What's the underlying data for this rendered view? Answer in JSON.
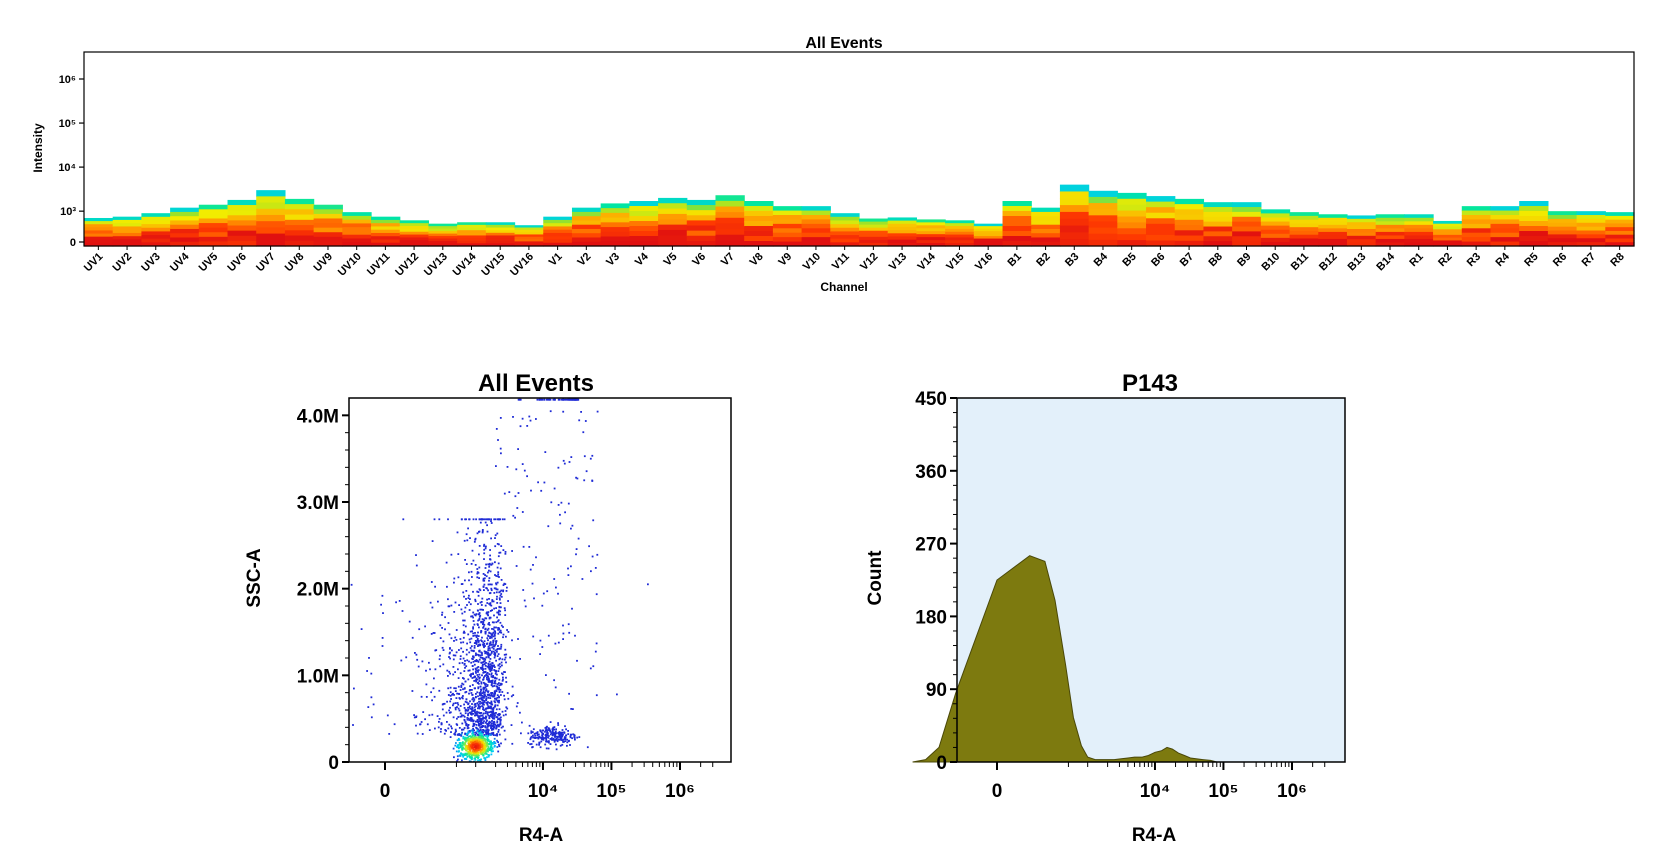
{
  "colors": {
    "background": "#ffffff",
    "axis": "#000000",
    "heat_scale": [
      "#00c8ff",
      "#00e6a0",
      "#9be22a",
      "#f2ec00",
      "#ff9d00",
      "#ff3b00",
      "#e01010"
    ],
    "dot_plot_points": "#1f2bd6",
    "histogram_fill": "#7d7a0f",
    "histogram_plot_bg": "#e3f0fa"
  },
  "chart_data": [
    {
      "type": "heatmap",
      "title": "All Events",
      "xlabel": "Channel",
      "ylabel": "Intensity",
      "y_scale": "log",
      "y_tick_labels": [
        "0",
        "10³",
        "10⁴",
        "10⁵",
        "10⁶"
      ],
      "y_tick_values": [
        0,
        1000,
        10000,
        100000,
        1000000
      ],
      "grid": false,
      "categories": [
        "UV1",
        "UV2",
        "UV3",
        "UV4",
        "UV5",
        "UV6",
        "UV7",
        "UV8",
        "UV9",
        "UV10",
        "UV11",
        "UV12",
        "UV13",
        "UV14",
        "UV15",
        "UV16",
        "V1",
        "V2",
        "V3",
        "V4",
        "V5",
        "V6",
        "V7",
        "V8",
        "V9",
        "V10",
        "V11",
        "V12",
        "V13",
        "V14",
        "V15",
        "V16",
        "B1",
        "B2",
        "B3",
        "B4",
        "B5",
        "B6",
        "B7",
        "B8",
        "B9",
        "B10",
        "B11",
        "B12",
        "B13",
        "B14",
        "R1",
        "R2",
        "R3",
        "R4",
        "R5",
        "R6",
        "R7",
        "R8"
      ],
      "max_intensity": [
        700,
        750,
        900,
        1200,
        1400,
        1800,
        3000,
        1900,
        1400,
        950,
        750,
        620,
        520,
        560,
        560,
        480,
        750,
        1200,
        1500,
        1700,
        2000,
        1800,
        2300,
        1700,
        1300,
        1300,
        900,
        680,
        720,
        650,
        620,
        520,
        1700,
        1200,
        4000,
        2900,
        2600,
        2200,
        1900,
        1600,
        1600,
        1100,
        950,
        850,
        800,
        850,
        850,
        600,
        1300,
        1300,
        1700,
        1000,
        1000,
        950
      ]
    },
    {
      "type": "scatter",
      "title": "All Events",
      "xlabel": "R4-A",
      "ylabel": "SSC-A",
      "x_scale": "biexponential",
      "x_tick_labels": [
        "0",
        "10⁴",
        "10⁵",
        "10⁶"
      ],
      "x_tick_values": [
        0,
        10000,
        100000,
        1000000
      ],
      "y_tick_labels": [
        "0",
        "1.0M",
        "2.0M",
        "3.0M",
        "4.0M"
      ],
      "y_tick_values": [
        0,
        1000000,
        2000000,
        3000000,
        4000000
      ],
      "ylim": [
        0,
        4200000
      ],
      "populations": [
        {
          "name_hint": "main",
          "center_x": 1000,
          "center_y": 180000,
          "density": "very high"
        },
        {
          "name_hint": "stream",
          "x_range": [
            500,
            3000
          ],
          "y_range": [
            300000,
            2800000
          ],
          "density": "high"
        },
        {
          "name_hint": "sparse",
          "x_range": [
            12000,
            40000
          ],
          "y_range": [
            200000,
            450000
          ],
          "density": "low"
        }
      ],
      "outlier_points": [
        {
          "x": 340000,
          "y": 2050000
        },
        {
          "x": 120000,
          "y": 780000
        },
        {
          "x": 50000,
          "y": 3500000
        },
        {
          "x": 40000,
          "y": 3250000
        }
      ]
    },
    {
      "type": "area",
      "title": "P143",
      "xlabel": "R4-A",
      "ylabel": "Count",
      "x_scale": "biexponential",
      "x_tick_labels": [
        "0",
        "10⁴",
        "10⁵",
        "10⁶"
      ],
      "x_tick_values": [
        0,
        10000,
        100000,
        1000000
      ],
      "y_tick_labels": [
        "0",
        "90",
        "180",
        "270",
        "360",
        "450"
      ],
      "ylim": [
        0,
        450
      ],
      "series": [
        {
          "x": [
            -800,
            -500,
            -300,
            -150,
            0,
            100,
            200,
            300,
            450,
            600,
            800,
            1000,
            1300,
            1600,
            2000,
            2500,
            3200,
            4000,
            5000,
            6500,
            8000,
            10000,
            12500,
            15000,
            18000,
            22000,
            27000,
            33000,
            40000,
            50000,
            65000,
            80000
          ],
          "y": [
            0,
            3,
            18,
            85,
            225,
            255,
            248,
            200,
            120,
            55,
            20,
            6,
            3,
            3,
            3,
            3,
            4,
            5,
            6,
            6,
            8,
            12,
            14,
            18,
            16,
            11,
            8,
            5,
            4,
            3,
            2,
            0
          ]
        }
      ]
    }
  ]
}
